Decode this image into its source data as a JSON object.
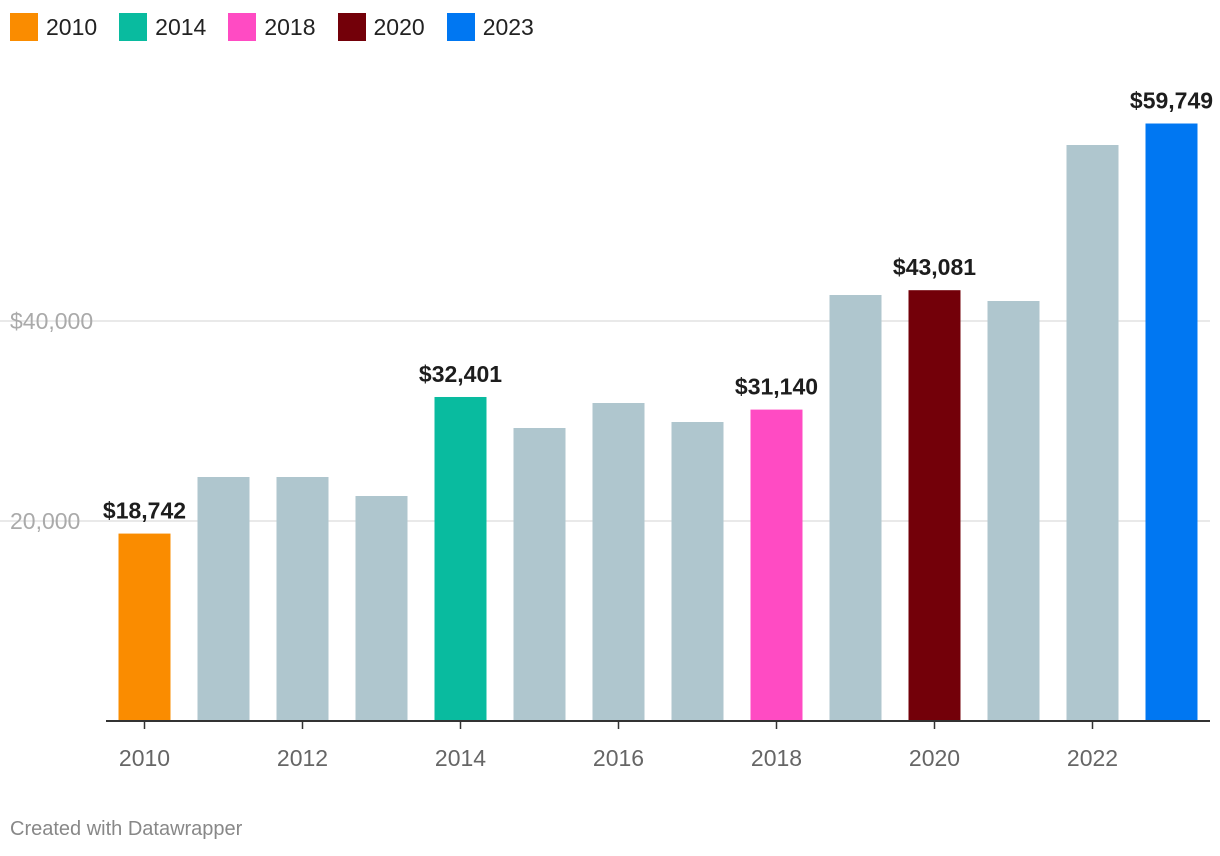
{
  "chart_data": {
    "type": "bar",
    "title": "",
    "xlabel": "",
    "ylabel": "",
    "ylim": [
      0,
      60000
    ],
    "grid": true,
    "y_ticks": [
      {
        "value": 20000,
        "label": "20,000"
      },
      {
        "value": 40000,
        "label": "$40,000"
      }
    ],
    "x_ticks": [
      "2010",
      "2012",
      "2014",
      "2016",
      "2018",
      "2020",
      "2022"
    ],
    "categories": [
      "2010",
      "2011",
      "2012",
      "2013",
      "2014",
      "2015",
      "2016",
      "2017",
      "2018",
      "2019",
      "2020",
      "2021",
      "2022",
      "2023"
    ],
    "values": [
      18742,
      24400,
      24400,
      22500,
      32401,
      29300,
      31800,
      29900,
      31140,
      42600,
      43081,
      42000,
      57600,
      59749
    ],
    "highlighted": {
      "2010": {
        "color": "#fa8c00",
        "label": "$18,742"
      },
      "2014": {
        "color": "#09bb9f",
        "label": "$32,401"
      },
      "2018": {
        "color": "#ff4bc3",
        "label": "$31,140"
      },
      "2020": {
        "color": "#730009",
        "label": "$43,081"
      },
      "2023": {
        "color": "#0077f2",
        "label": "$59,749"
      }
    },
    "default_bar_color": "#afc6ce",
    "legend": [
      {
        "label": "2010",
        "color": "#fa8c00"
      },
      {
        "label": "2014",
        "color": "#09bb9f"
      },
      {
        "label": "2018",
        "color": "#ff4bc3"
      },
      {
        "label": "2020",
        "color": "#730009"
      },
      {
        "label": "2023",
        "color": "#0077f2"
      }
    ],
    "legend_position": "top-left"
  },
  "footer": {
    "credit": "Created with Datawrapper"
  }
}
